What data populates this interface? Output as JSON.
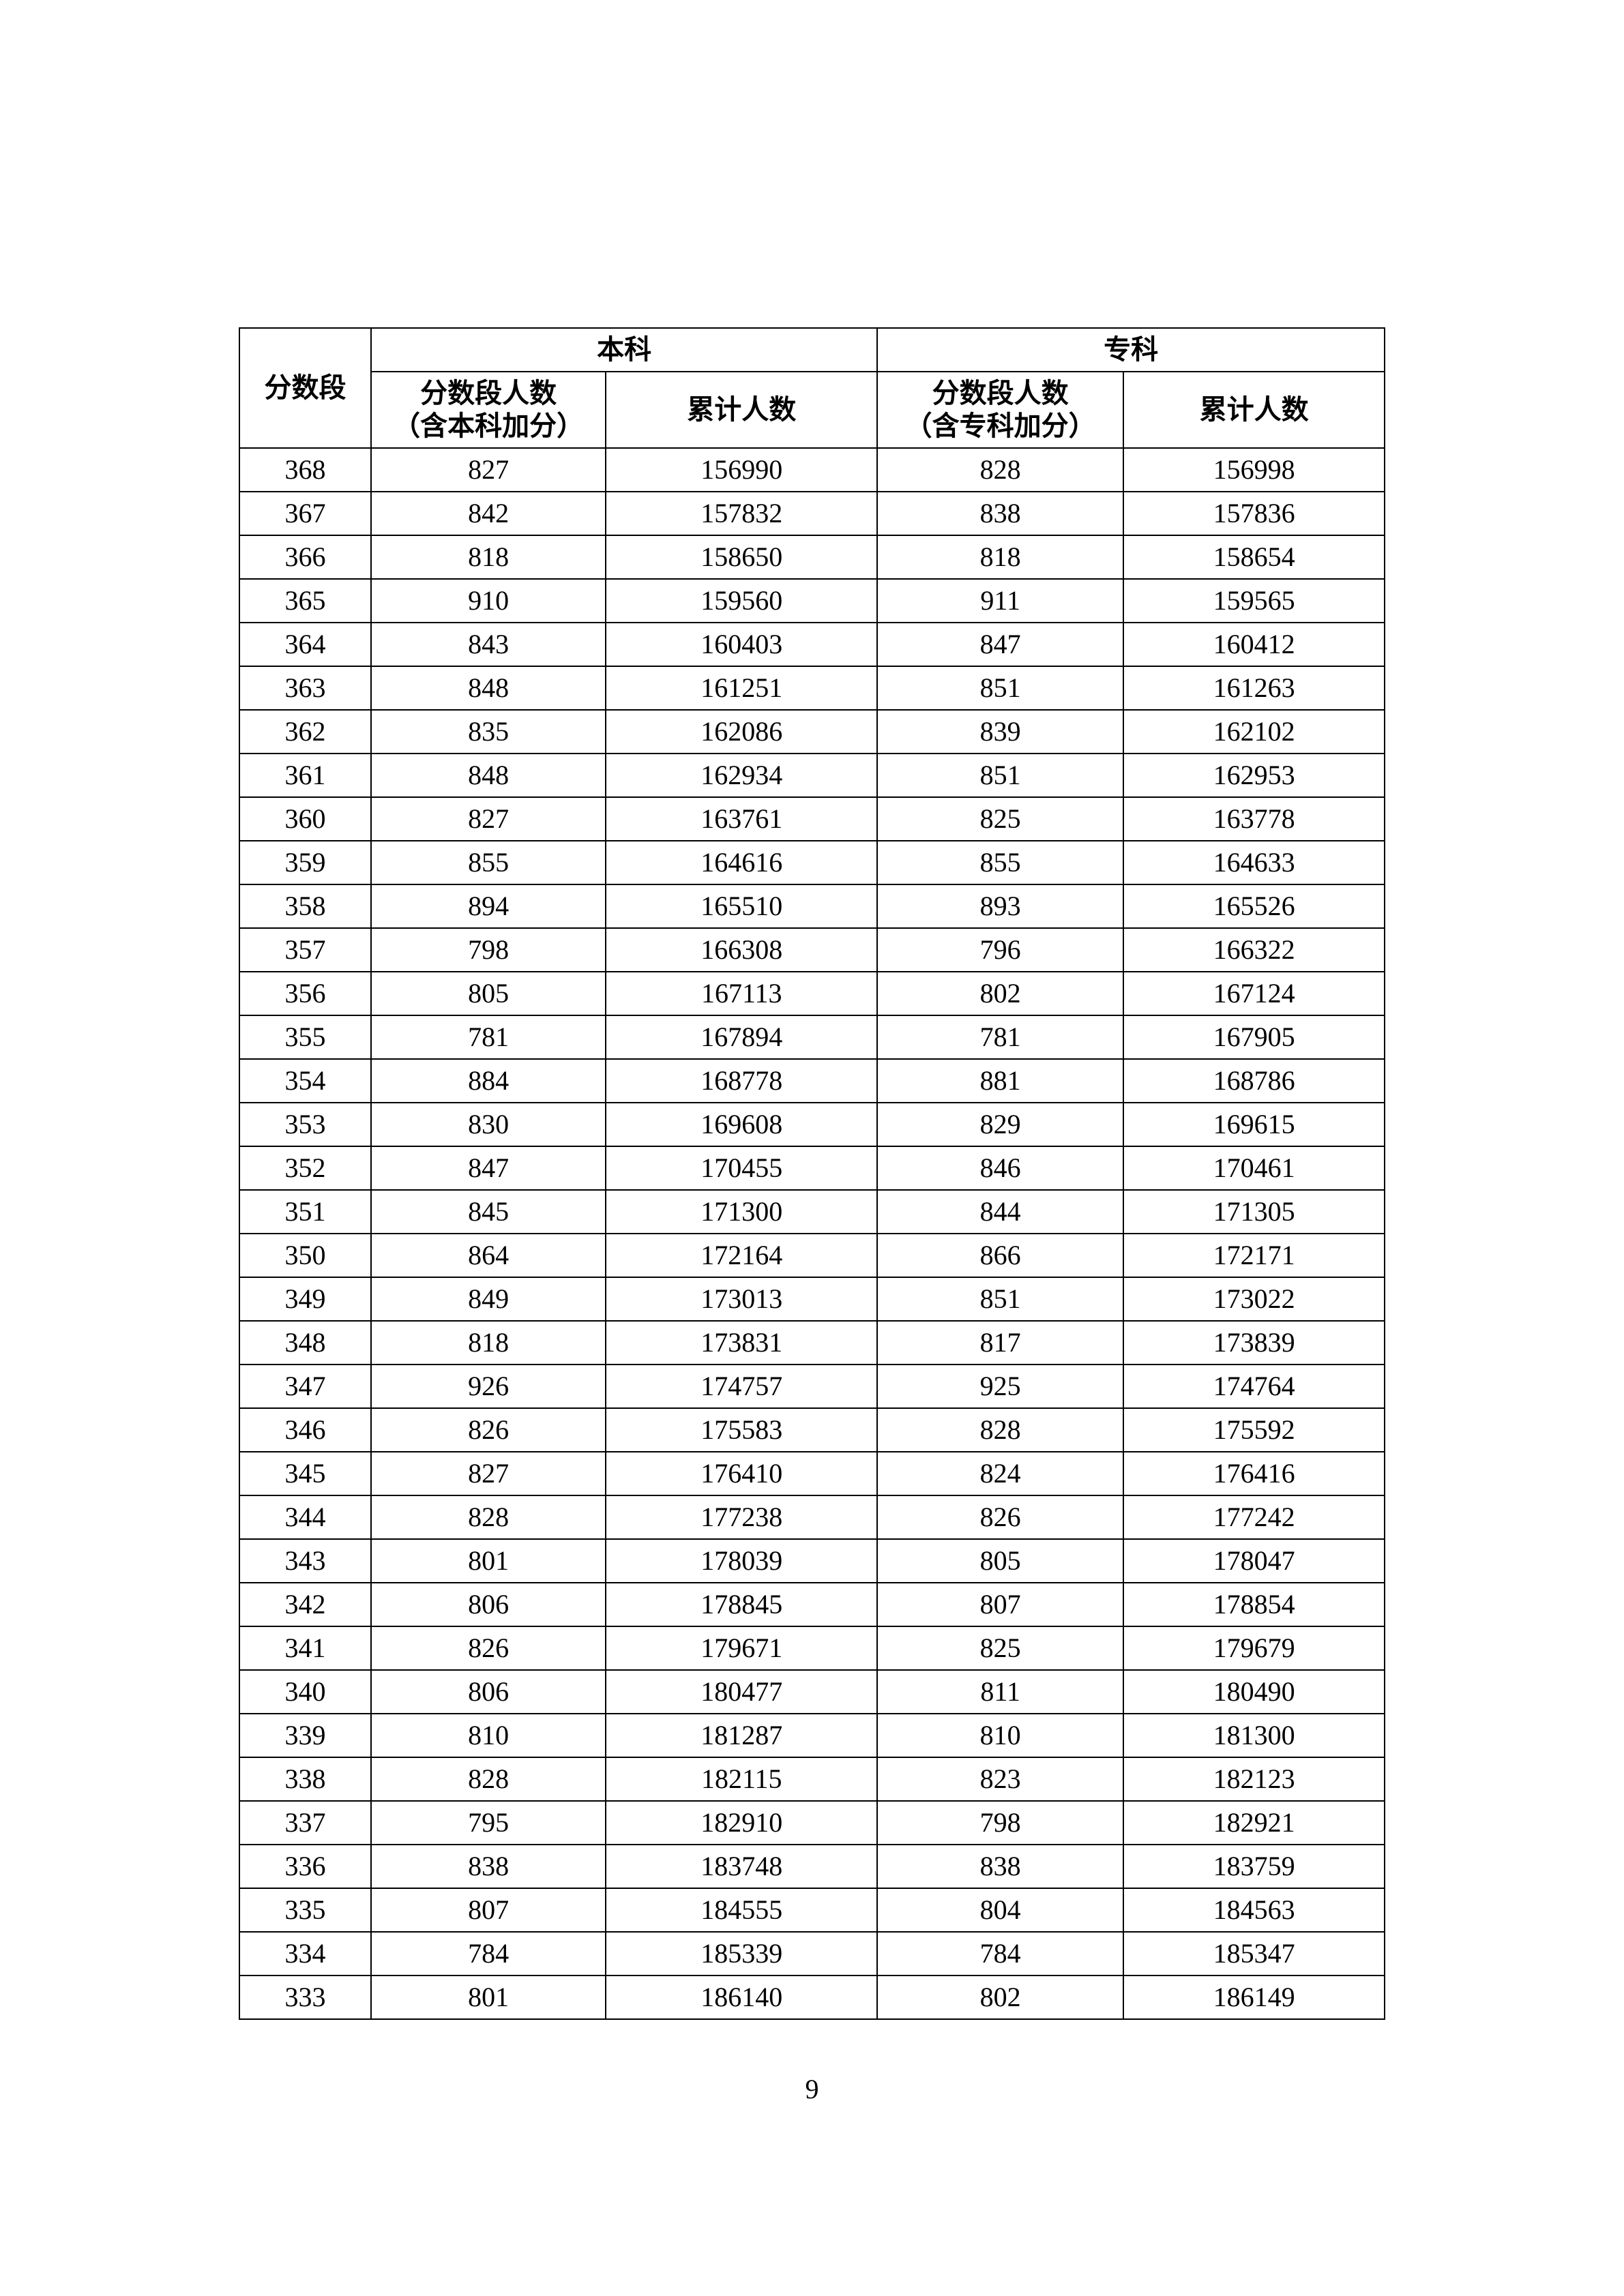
{
  "table": {
    "type": "table",
    "columns": {
      "score": "分数段",
      "benke_group": "本科",
      "zhuanke_group": "专科",
      "benke_count_l1": "分数段人数",
      "benke_count_l2": "（含本科加分）",
      "benke_cum": "累计人数",
      "zhuanke_count_l1": "分数段人数",
      "zhuanke_count_l2": "（含专科加分）",
      "zhuanke_cum": "累计人数"
    },
    "border_color": "#000000",
    "background_color": "#ffffff",
    "header_font_size_pt": 14,
    "cell_font_size_pt": 14,
    "col_widths_pct": [
      11.5,
      20.5,
      23.7,
      21.5,
      22.8
    ],
    "rows": [
      [
        "368",
        "827",
        "156990",
        "828",
        "156998"
      ],
      [
        "367",
        "842",
        "157832",
        "838",
        "157836"
      ],
      [
        "366",
        "818",
        "158650",
        "818",
        "158654"
      ],
      [
        "365",
        "910",
        "159560",
        "911",
        "159565"
      ],
      [
        "364",
        "843",
        "160403",
        "847",
        "160412"
      ],
      [
        "363",
        "848",
        "161251",
        "851",
        "161263"
      ],
      [
        "362",
        "835",
        "162086",
        "839",
        "162102"
      ],
      [
        "361",
        "848",
        "162934",
        "851",
        "162953"
      ],
      [
        "360",
        "827",
        "163761",
        "825",
        "163778"
      ],
      [
        "359",
        "855",
        "164616",
        "855",
        "164633"
      ],
      [
        "358",
        "894",
        "165510",
        "893",
        "165526"
      ],
      [
        "357",
        "798",
        "166308",
        "796",
        "166322"
      ],
      [
        "356",
        "805",
        "167113",
        "802",
        "167124"
      ],
      [
        "355",
        "781",
        "167894",
        "781",
        "167905"
      ],
      [
        "354",
        "884",
        "168778",
        "881",
        "168786"
      ],
      [
        "353",
        "830",
        "169608",
        "829",
        "169615"
      ],
      [
        "352",
        "847",
        "170455",
        "846",
        "170461"
      ],
      [
        "351",
        "845",
        "171300",
        "844",
        "171305"
      ],
      [
        "350",
        "864",
        "172164",
        "866",
        "172171"
      ],
      [
        "349",
        "849",
        "173013",
        "851",
        "173022"
      ],
      [
        "348",
        "818",
        "173831",
        "817",
        "173839"
      ],
      [
        "347",
        "926",
        "174757",
        "925",
        "174764"
      ],
      [
        "346",
        "826",
        "175583",
        "828",
        "175592"
      ],
      [
        "345",
        "827",
        "176410",
        "824",
        "176416"
      ],
      [
        "344",
        "828",
        "177238",
        "826",
        "177242"
      ],
      [
        "343",
        "801",
        "178039",
        "805",
        "178047"
      ],
      [
        "342",
        "806",
        "178845",
        "807",
        "178854"
      ],
      [
        "341",
        "826",
        "179671",
        "825",
        "179679"
      ],
      [
        "340",
        "806",
        "180477",
        "811",
        "180490"
      ],
      [
        "339",
        "810",
        "181287",
        "810",
        "181300"
      ],
      [
        "338",
        "828",
        "182115",
        "823",
        "182123"
      ],
      [
        "337",
        "795",
        "182910",
        "798",
        "182921"
      ],
      [
        "336",
        "838",
        "183748",
        "838",
        "183759"
      ],
      [
        "335",
        "807",
        "184555",
        "804",
        "184563"
      ],
      [
        "334",
        "784",
        "185339",
        "784",
        "185347"
      ],
      [
        "333",
        "801",
        "186140",
        "802",
        "186149"
      ]
    ]
  },
  "page_number": "9"
}
